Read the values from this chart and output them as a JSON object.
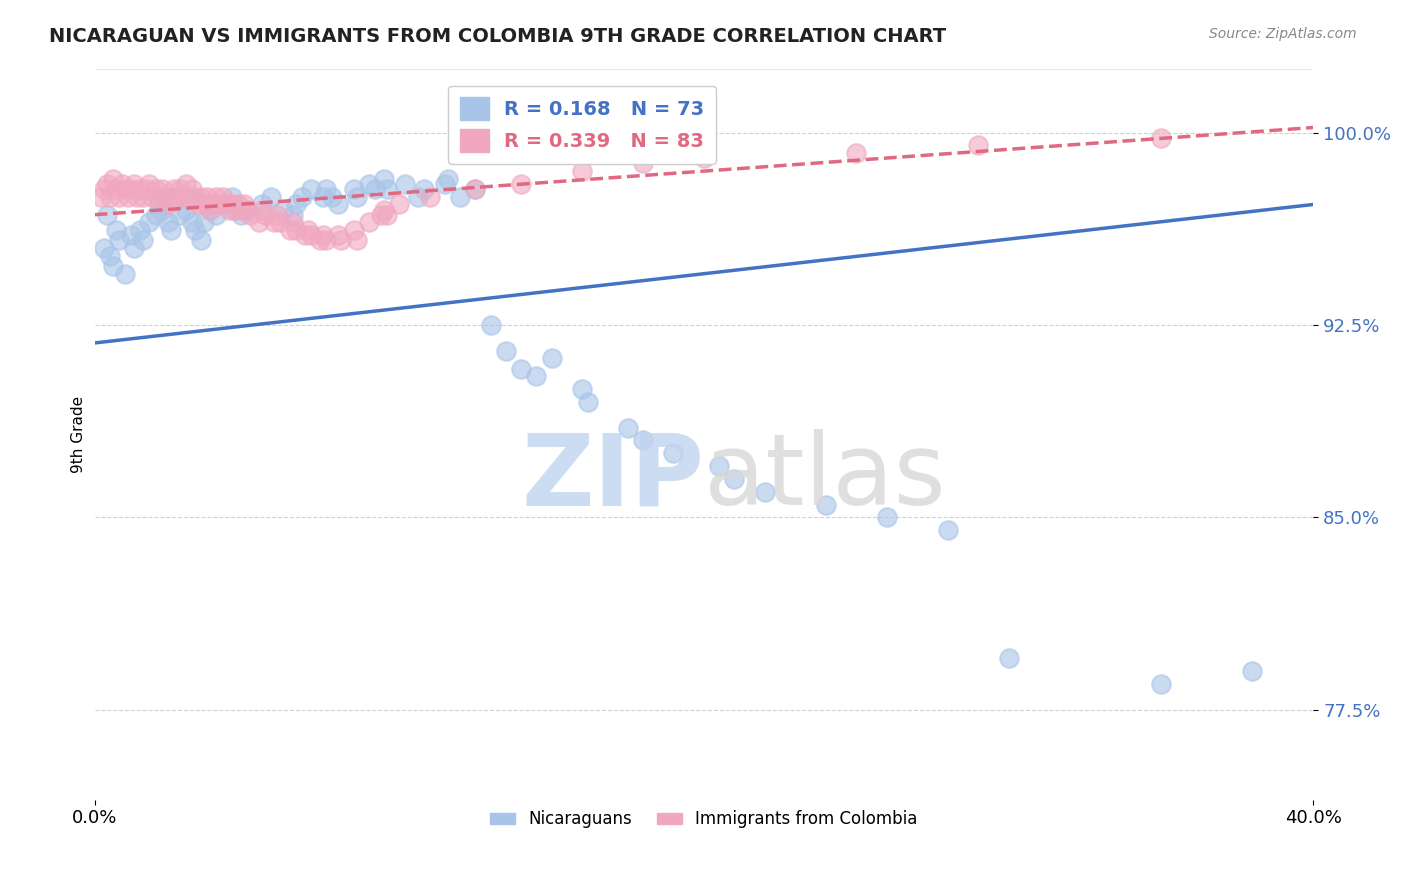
{
  "title": "NICARAGUAN VS IMMIGRANTS FROM COLOMBIA 9TH GRADE CORRELATION CHART",
  "source_text": "Source: ZipAtlas.com",
  "ylabel": "9th Grade",
  "yticks": [
    77.5,
    85.0,
    92.5,
    100.0
  ],
  "ytick_labels": [
    "77.5%",
    "85.0%",
    "92.5%",
    "100.0%"
  ],
  "xmin": 0.0,
  "xmax": 40.0,
  "ymin": 74.0,
  "ymax": 102.5,
  "blue_R": 0.168,
  "blue_N": 73,
  "pink_R": 0.339,
  "pink_N": 83,
  "blue_color": "#a8c4e8",
  "pink_color": "#f0a8c0",
  "blue_line_color": "#4472c4",
  "pink_line_color": "#e06880",
  "legend_label_blue": "Nicaraguans",
  "legend_label_pink": "Immigrants from Colombia",
  "blue_line_y0": 91.8,
  "blue_line_y1": 97.2,
  "pink_line_y0": 96.8,
  "pink_line_y1": 100.2,
  "blue_x": [
    0.3,
    0.4,
    0.5,
    0.6,
    0.7,
    0.8,
    1.0,
    1.2,
    1.3,
    1.5,
    1.6,
    1.8,
    2.0,
    2.1,
    2.2,
    2.4,
    2.5,
    2.8,
    3.0,
    3.2,
    3.3,
    3.5,
    3.6,
    3.8,
    4.0,
    4.2,
    4.5,
    4.6,
    4.8,
    5.0,
    5.5,
    5.8,
    6.2,
    6.5,
    6.6,
    6.8,
    7.1,
    7.5,
    7.6,
    7.8,
    8.0,
    8.5,
    8.6,
    9.0,
    9.2,
    9.5,
    9.6,
    10.2,
    10.6,
    10.8,
    11.5,
    11.6,
    12.0,
    12.5,
    13.0,
    13.5,
    14.0,
    14.5,
    15.0,
    16.0,
    16.2,
    17.5,
    18.0,
    19.0,
    20.5,
    21.0,
    22.0,
    24.0,
    26.0,
    28.0,
    30.0,
    35.0,
    38.0
  ],
  "blue_y": [
    95.5,
    96.8,
    95.2,
    94.8,
    96.2,
    95.8,
    94.5,
    96.0,
    95.5,
    96.2,
    95.8,
    96.5,
    96.8,
    97.2,
    97.0,
    96.5,
    96.2,
    96.8,
    97.0,
    96.5,
    96.2,
    95.8,
    96.5,
    97.0,
    96.8,
    97.2,
    97.5,
    97.0,
    96.8,
    97.0,
    97.2,
    97.5,
    97.0,
    96.8,
    97.2,
    97.5,
    97.8,
    97.5,
    97.8,
    97.5,
    97.2,
    97.8,
    97.5,
    98.0,
    97.8,
    98.2,
    97.8,
    98.0,
    97.5,
    97.8,
    98.0,
    98.2,
    97.5,
    97.8,
    92.5,
    91.5,
    90.8,
    90.5,
    91.2,
    90.0,
    89.5,
    88.5,
    88.0,
    87.5,
    87.0,
    86.5,
    86.0,
    85.5,
    85.0,
    84.5,
    79.5,
    78.5,
    79.0
  ],
  "pink_x": [
    0.2,
    0.3,
    0.4,
    0.5,
    0.6,
    0.7,
    0.8,
    0.9,
    1.0,
    1.1,
    1.2,
    1.3,
    1.4,
    1.5,
    1.6,
    1.7,
    1.8,
    1.9,
    2.0,
    2.1,
    2.2,
    2.3,
    2.4,
    2.5,
    2.6,
    2.7,
    2.8,
    2.9,
    3.0,
    3.1,
    3.2,
    3.3,
    3.4,
    3.5,
    3.6,
    3.7,
    3.8,
    3.9,
    4.0,
    4.1,
    4.2,
    4.3,
    4.4,
    4.5,
    4.6,
    4.7,
    4.8,
    4.9,
    5.0,
    5.1,
    5.4,
    5.5,
    5.6,
    5.9,
    6.0,
    6.1,
    6.4,
    6.5,
    6.6,
    6.9,
    7.0,
    7.1,
    7.4,
    7.5,
    7.6,
    8.0,
    8.1,
    8.5,
    8.6,
    9.0,
    9.4,
    9.5,
    9.6,
    10.0,
    11.0,
    12.5,
    14.0,
    16.0,
    18.0,
    20.0,
    25.0,
    29.0,
    35.0
  ],
  "pink_y": [
    97.5,
    97.8,
    98.0,
    97.5,
    98.2,
    97.8,
    97.5,
    98.0,
    97.8,
    97.5,
    97.8,
    98.0,
    97.5,
    97.8,
    97.5,
    97.8,
    98.0,
    97.5,
    97.8,
    97.5,
    97.8,
    97.5,
    97.2,
    97.5,
    97.8,
    97.5,
    97.8,
    97.5,
    98.0,
    97.5,
    97.8,
    97.5,
    97.2,
    97.5,
    97.2,
    97.5,
    97.0,
    97.2,
    97.5,
    97.2,
    97.5,
    97.2,
    97.0,
    97.2,
    97.0,
    97.2,
    97.0,
    97.2,
    97.0,
    96.8,
    96.5,
    97.0,
    96.8,
    96.5,
    96.8,
    96.5,
    96.2,
    96.5,
    96.2,
    96.0,
    96.2,
    96.0,
    95.8,
    96.0,
    95.8,
    96.0,
    95.8,
    96.2,
    95.8,
    96.5,
    96.8,
    97.0,
    96.8,
    97.2,
    97.5,
    97.8,
    98.0,
    98.5,
    98.8,
    99.0,
    99.2,
    99.5,
    99.8
  ]
}
